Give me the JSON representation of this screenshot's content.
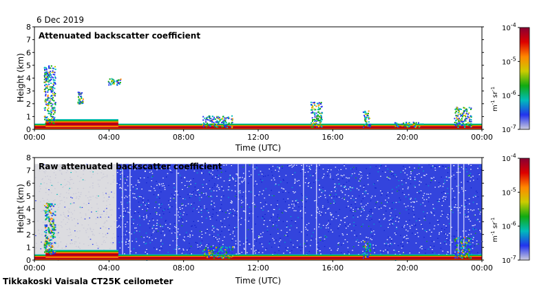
{
  "header": {
    "date": "6 Dec 2019"
  },
  "footer": {
    "caption": "Tikkakoski Vaisala CT25K ceilometer"
  },
  "chart_data": [
    {
      "type": "heatmap",
      "title": "Attenuated backscatter coefficient",
      "xlabel": "Time (UTC)",
      "ylabel": "Height (km)",
      "x_ticks": [
        "00:00",
        "04:00",
        "08:00",
        "12:00",
        "16:00",
        "20:00",
        "00:00"
      ],
      "xlim_hours": [
        0,
        24
      ],
      "y_ticks": [
        0,
        1,
        2,
        3,
        4,
        5,
        6,
        7,
        8
      ],
      "ylim": [
        0,
        8
      ],
      "colorbar": {
        "scale": "log",
        "range": [
          1e-07,
          0.0001
        ],
        "tick_labels": [
          {
            "base": "10",
            "exp": "-4"
          },
          {
            "base": "10",
            "exp": "-5"
          },
          {
            "base": "10",
            "exp": "-6"
          },
          {
            "base": "10",
            "exp": "-7"
          }
        ],
        "unit": {
          "m": "m",
          "m_exp": "-1",
          "sr": "sr",
          "sr_exp": "-1"
        }
      },
      "colors": [
        "#ccccdd",
        "#2233ee",
        "#00bbbb",
        "#11aa11",
        "#cccc00",
        "#ff8800",
        "#dd0000",
        "#880033"
      ],
      "features": [
        {
          "name": "boundary-layer",
          "h_start": 0.0,
          "h_end": 24.0,
          "height_km": [
            0.0,
            0.45
          ],
          "level": "high"
        },
        {
          "name": "early-aerosol-layer",
          "h_start": 0.6,
          "h_end": 4.5,
          "height_km": [
            0.2,
            0.8
          ],
          "level": "high"
        },
        {
          "name": "cloud-0045",
          "h_start": 0.5,
          "h_end": 1.1,
          "height_km": [
            0.5,
            5.0
          ],
          "level": "mid"
        },
        {
          "name": "cloud-0230",
          "h_start": 2.3,
          "h_end": 2.6,
          "height_km": [
            2.0,
            3.0
          ],
          "level": "mid"
        },
        {
          "name": "cloud-0400",
          "h_start": 3.9,
          "h_end": 4.6,
          "height_km": [
            3.5,
            4.0
          ],
          "level": "mid"
        },
        {
          "name": "cloud-0930",
          "h_start": 9.0,
          "h_end": 10.6,
          "height_km": [
            0.2,
            1.1
          ],
          "level": "mid"
        },
        {
          "name": "cloud-1500",
          "h_start": 14.8,
          "h_end": 15.4,
          "height_km": [
            0.2,
            2.2
          ],
          "level": "mid"
        },
        {
          "name": "cloud-1745",
          "h_start": 17.6,
          "h_end": 18.0,
          "height_km": [
            0.2,
            1.5
          ],
          "level": "mid"
        },
        {
          "name": "cloud-1930",
          "h_start": 19.3,
          "h_end": 20.8,
          "height_km": [
            0.2,
            0.6
          ],
          "level": "mid"
        },
        {
          "name": "cloud-2230",
          "h_start": 22.5,
          "h_end": 23.4,
          "height_km": [
            0.2,
            1.8
          ],
          "level": "mid"
        }
      ],
      "noise_background": false
    },
    {
      "type": "heatmap",
      "title": "Raw attenuated backscatter coefficient",
      "xlabel": "Time (UTC)",
      "ylabel": "Height (km)",
      "x_ticks": [
        "00:00",
        "04:00",
        "08:00",
        "12:00",
        "16:00",
        "20:00",
        "00:00"
      ],
      "xlim_hours": [
        0,
        24
      ],
      "y_ticks": [
        0,
        1,
        2,
        3,
        4,
        5,
        6,
        7,
        8
      ],
      "ylim": [
        0,
        8
      ],
      "colorbar": {
        "scale": "log",
        "range": [
          1e-07,
          0.0001
        ],
        "tick_labels": [
          {
            "base": "10",
            "exp": "-4"
          },
          {
            "base": "10",
            "exp": "-5"
          },
          {
            "base": "10",
            "exp": "-6"
          },
          {
            "base": "10",
            "exp": "-7"
          }
        ],
        "unit": {
          "m": "m",
          "m_exp": "-1",
          "sr": "sr",
          "sr_exp": "-1"
        }
      },
      "colors": [
        "#ccccdd",
        "#2233ee",
        "#00bbbb",
        "#11aa11",
        "#cccc00",
        "#ff8800",
        "#dd0000",
        "#880033"
      ],
      "features": [
        {
          "name": "boundary-layer",
          "h_start": 0.0,
          "h_end": 24.0,
          "height_km": [
            0.0,
            0.45
          ],
          "level": "high"
        },
        {
          "name": "early-aerosol-layer",
          "h_start": 0.6,
          "h_end": 4.5,
          "height_km": [
            0.2,
            0.8
          ],
          "level": "high"
        },
        {
          "name": "cloud-0045",
          "h_start": 0.5,
          "h_end": 1.1,
          "height_km": [
            0.5,
            4.5
          ],
          "level": "mid"
        },
        {
          "name": "cloud-0930",
          "h_start": 9.0,
          "h_end": 10.6,
          "height_km": [
            0.2,
            1.1
          ],
          "level": "mid"
        },
        {
          "name": "cloud-1745",
          "h_start": 17.6,
          "h_end": 18.0,
          "height_km": [
            0.2,
            1.5
          ],
          "level": "mid"
        },
        {
          "name": "cloud-2230",
          "h_start": 22.5,
          "h_end": 23.4,
          "height_km": [
            0.2,
            1.8
          ],
          "level": "mid"
        }
      ],
      "noise_background": true,
      "noise_top_km": 7.5,
      "gray_background_hours": [
        0,
        4.4
      ]
    }
  ]
}
